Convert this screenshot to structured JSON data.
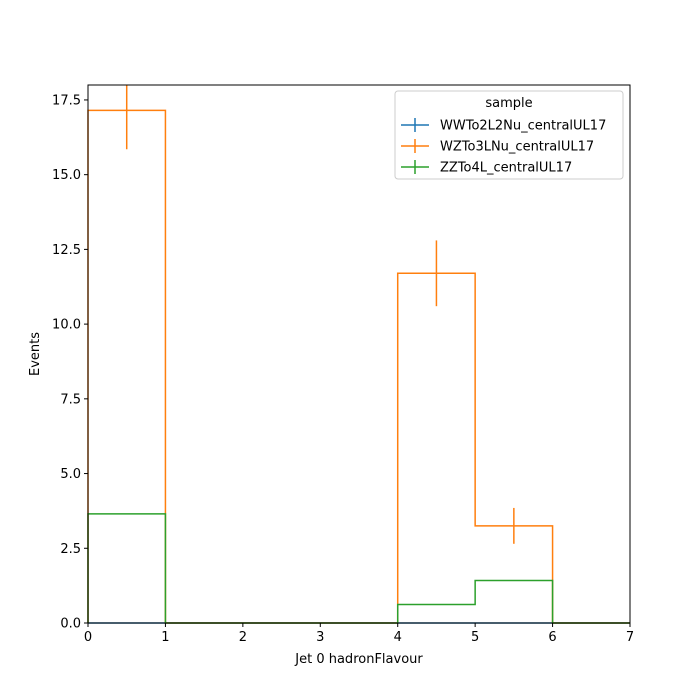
{
  "chart_data": {
    "type": "line",
    "xlabel": "Jet 0 hadronFlavour",
    "ylabel": "Events",
    "xlim": [
      0,
      7
    ],
    "ylim": [
      0,
      18.0
    ],
    "x_ticks": [
      "0",
      "1",
      "2",
      "3",
      "4",
      "5",
      "6",
      "7"
    ],
    "y_ticks": [
      "0.0",
      "2.5",
      "5.0",
      "7.5",
      "10.0",
      "12.5",
      "15.0",
      "17.5"
    ],
    "bin_edges": [
      0,
      1,
      2,
      3,
      4,
      5,
      6,
      7
    ],
    "grid": false,
    "legend": {
      "title": "sample",
      "placement": "top-right"
    },
    "series": [
      {
        "name": "WWTo2L2Nu_centralUL17",
        "color": "#1f77b4",
        "values": [
          0,
          0,
          0,
          0,
          0,
          0,
          0
        ],
        "errors": [
          0,
          0,
          0,
          0,
          0,
          0,
          0
        ]
      },
      {
        "name": "WZTo3LNu_centralUL17",
        "color": "#ff7f0e",
        "values": [
          17.15,
          0,
          0,
          0,
          11.7,
          3.25,
          0
        ],
        "errors": [
          1.3,
          0,
          0,
          0,
          1.1,
          0.6,
          0
        ]
      },
      {
        "name": "ZZTo4L_centralUL17",
        "color": "#2ca02c",
        "values": [
          3.65,
          0,
          0,
          0,
          0.62,
          1.42,
          0
        ],
        "errors": [
          0,
          0,
          0,
          0,
          0,
          0,
          0
        ]
      }
    ]
  }
}
